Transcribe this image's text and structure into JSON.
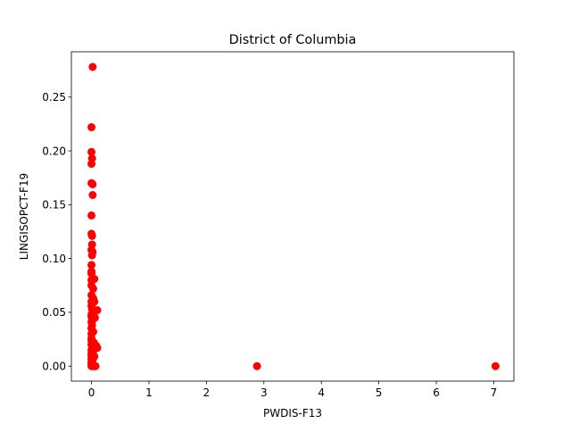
{
  "chart_data": {
    "type": "scatter",
    "title": "District of Columbia",
    "xlabel": "PWDIS-F13",
    "ylabel": "LINGISOPCT-F19",
    "xlim": [
      -0.35,
      7.35
    ],
    "ylim": [
      -0.0139,
      0.2921
    ],
    "xticks": [
      0,
      1,
      2,
      3,
      4,
      5,
      6,
      7
    ],
    "xtick_labels": [
      "0",
      "1",
      "2",
      "3",
      "4",
      "5",
      "6",
      "7"
    ],
    "yticks": [
      0.0,
      0.05,
      0.1,
      0.15,
      0.2,
      0.25
    ],
    "ytick_labels": [
      "0.00",
      "0.05",
      "0.10",
      "0.15",
      "0.20",
      "0.25"
    ],
    "grid": false,
    "legend": "none",
    "marker_color": "#ff0000",
    "series": [
      {
        "points": [
          [
            0.02,
            0.278
          ],
          [
            0.0,
            0.222
          ],
          [
            0.0,
            0.199
          ],
          [
            0.01,
            0.193
          ],
          [
            0.0,
            0.188
          ],
          [
            0.0,
            0.17
          ],
          [
            0.02,
            0.169
          ],
          [
            0.02,
            0.159
          ],
          [
            0.0,
            0.14
          ],
          [
            0.0,
            0.123
          ],
          [
            0.01,
            0.121
          ],
          [
            0.01,
            0.113
          ],
          [
            0.0,
            0.108
          ],
          [
            0.02,
            0.106
          ],
          [
            0.01,
            0.103
          ],
          [
            0.0,
            0.094
          ],
          [
            0.0,
            0.088
          ],
          [
            0.0,
            0.086
          ],
          [
            0.05,
            0.081
          ],
          [
            0.0,
            0.08
          ],
          [
            0.0,
            0.075
          ],
          [
            0.03,
            0.072
          ],
          [
            0.0,
            0.066
          ],
          [
            0.03,
            0.063
          ],
          [
            0.0,
            0.06
          ],
          [
            0.05,
            0.06
          ],
          [
            0.0,
            0.056
          ],
          [
            0.01,
            0.053
          ],
          [
            0.1,
            0.052
          ],
          [
            0.04,
            0.051
          ],
          [
            0.0,
            0.048
          ],
          [
            0.0,
            0.046
          ],
          [
            0.06,
            0.045
          ],
          [
            0.02,
            0.043
          ],
          [
            0.0,
            0.041
          ],
          [
            0.01,
            0.038
          ],
          [
            0.0,
            0.035
          ],
          [
            0.03,
            0.032
          ],
          [
            0.0,
            0.03
          ],
          [
            0.0,
            0.026
          ],
          [
            0.0,
            0.024
          ],
          [
            0.04,
            0.022
          ],
          [
            0.0,
            0.02
          ],
          [
            0.08,
            0.019
          ],
          [
            0.1,
            0.017
          ],
          [
            0.0,
            0.015
          ],
          [
            0.03,
            0.014
          ],
          [
            0.0,
            0.012
          ],
          [
            0.0,
            0.01
          ],
          [
            0.05,
            0.009
          ],
          [
            0.0,
            0.007
          ],
          [
            0.02,
            0.006
          ],
          [
            0.0,
            0.004
          ],
          [
            0.01,
            0.003
          ],
          [
            0.0,
            0.002
          ],
          [
            0.04,
            0.001
          ],
          [
            0.0,
            0.0
          ],
          [
            0.02,
            0.0
          ],
          [
            0.05,
            0.0
          ],
          [
            0.07,
            0.0
          ],
          [
            2.88,
            0.0
          ],
          [
            7.03,
            0.0
          ]
        ]
      }
    ]
  }
}
